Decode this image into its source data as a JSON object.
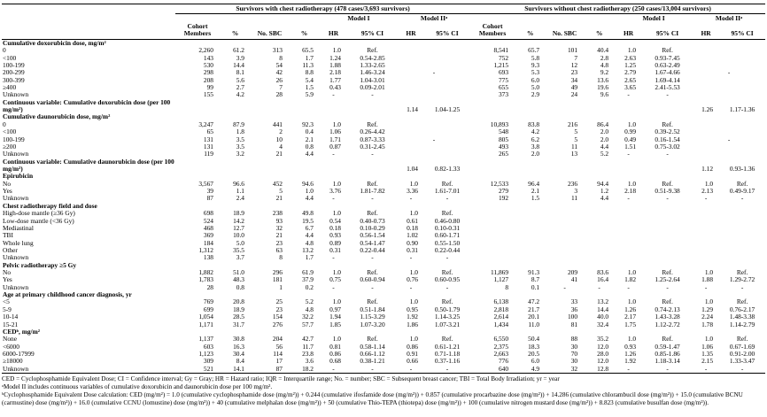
{
  "header": {
    "group_with": "Survivors with chest radiotherapy (478 cases/3,693 survivors)",
    "group_without": "Survivors without chest radiotherapy (250 cases/13,004 survivors)",
    "model1": "Model I",
    "model2": "Model IIᵃ",
    "cols": [
      "Cohort Members",
      "%",
      "No. SBC",
      "%",
      "HR",
      "95% CI",
      "HR",
      "95% CI"
    ]
  },
  "sections": [
    {
      "label": "Cumulative doxorubicin dose, mg/m²",
      "m2span": {
        "with": "-",
        "without": "-"
      },
      "rows": [
        {
          "label": "0",
          "cells": [
            "2,260",
            "61.2",
            "313",
            "65.5",
            "1.0",
            "Ref.",
            "8,541",
            "65.7",
            "101",
            "40.4",
            "1.0",
            "Ref."
          ]
        },
        {
          "label": "<100",
          "cells": [
            "143",
            "3.9",
            "8",
            "1.7",
            "1.24",
            "0.54-2.85",
            "752",
            "5.8",
            "7",
            "2.8",
            "2.63",
            "0.93-7.45"
          ]
        },
        {
          "label": "100-199",
          "cells": [
            "530",
            "14.4",
            "54",
            "11.3",
            "1.88",
            "1.33-2.65",
            "1,215",
            "9.3",
            "12",
            "4.8",
            "1.25",
            "0.63-2.49"
          ]
        },
        {
          "label": "200-299",
          "cells": [
            "298",
            "8.1",
            "42",
            "8.8",
            "2.18",
            "1.46-3.24",
            "693",
            "5.3",
            "23",
            "9.2",
            "2.79",
            "1.67-4.66"
          ]
        },
        {
          "label": "300-399",
          "cells": [
            "208",
            "5.6",
            "26",
            "5.4",
            "1.77",
            "1.04-3.01",
            "775",
            "6.0",
            "34",
            "13.6",
            "2.65",
            "1.69-4.14"
          ]
        },
        {
          "label": "≥400",
          "cells": [
            "99",
            "2.7",
            "7",
            "1.5",
            "0.43",
            "0.09-2.01",
            "655",
            "5.0",
            "49",
            "19.6",
            "3.65",
            "2.41-5.53"
          ]
        },
        {
          "label": "Unknown",
          "cells": [
            "155",
            "4.2",
            "28",
            "5.9",
            "-",
            "-",
            "373",
            "2.9",
            "24",
            "9.6",
            "-",
            "-"
          ]
        }
      ]
    },
    {
      "label": "",
      "rows": [
        {
          "label": "Continuous variable: Cumulative doxorubicin dose (per 100 mg/m²)",
          "bold": true,
          "cells": [
            "",
            "",
            "",
            "",
            "",
            "",
            "1.14",
            "1.04-1.25",
            "",
            "",
            "",
            "",
            "",
            "",
            "1.26",
            "1.17-1.36"
          ]
        }
      ]
    },
    {
      "label": "Cumulative daunorubicin dose, mg/m²",
      "m2span": {
        "with": "-",
        "without": "-"
      },
      "rows": [
        {
          "label": "0",
          "cells": [
            "3,247",
            "87.9",
            "441",
            "92.3",
            "1.0",
            "Ref.",
            "10,893",
            "83.8",
            "216",
            "86.4",
            "1.0",
            "Ref."
          ]
        },
        {
          "label": "<100",
          "cells": [
            "65",
            "1.8",
            "2",
            "0.4",
            "1.06",
            "0.26-4.42",
            "548",
            "4.2",
            "5",
            "2.0",
            "0.99",
            "0.39-2.52"
          ]
        },
        {
          "label": "100-199",
          "cells": [
            "131",
            "3.5",
            "10",
            "2.1",
            "1.71",
            "0.87-3.33",
            "805",
            "6.2",
            "5",
            "2.0",
            "0.49",
            "0.16-1.54"
          ]
        },
        {
          "label": "≥200",
          "cells": [
            "131",
            "3.5",
            "4",
            "0.8",
            "0.87",
            "0.31-2.45",
            "493",
            "3.8",
            "11",
            "4.4",
            "1.51",
            "0.75-3.02"
          ]
        },
        {
          "label": "Unknown",
          "cells": [
            "119",
            "3.2",
            "21",
            "4.4",
            "-",
            "-",
            "265",
            "2.0",
            "13",
            "5.2",
            "-",
            "-"
          ]
        }
      ]
    },
    {
      "label": "",
      "rows": [
        {
          "label": "Continuous variable:  Cumulative daunorubicin dose (per 100 mg/m²)",
          "bold": true,
          "cells": [
            "",
            "",
            "",
            "",
            "",
            "",
            "1.04",
            "0.82-1.33",
            "",
            "",
            "",
            "",
            "",
            "",
            "1.12",
            "0.93-1.36"
          ]
        }
      ]
    },
    {
      "label": "Epirubicin",
      "rows": [
        {
          "label": "No",
          "cells": [
            "3,567",
            "96.6",
            "452",
            "94.6",
            "1.0",
            "Ref.",
            "1.0",
            "Ref.",
            "12,533",
            "96.4",
            "236",
            "94.4",
            "1.0",
            "Ref.",
            "1.0",
            "Ref."
          ]
        },
        {
          "label": "Yes",
          "cells": [
            "39",
            "1.1",
            "5",
            "1.0",
            "3.76",
            "1.81-7.82",
            "3.36",
            "1.61-7.01",
            "279",
            "2.1",
            "3",
            "1.2",
            "2.18",
            "0.51-9.38",
            "2.13",
            "0.49-9.17"
          ]
        },
        {
          "label": "Unknown",
          "cells": [
            "87",
            "2.4",
            "21",
            "4.4",
            "-",
            "-",
            "-",
            "-",
            "192",
            "1.5",
            "11",
            "4.4",
            "-",
            "-",
            "-",
            "-"
          ]
        }
      ]
    },
    {
      "label": "Chest radiotherapy field and dose",
      "rows": [
        {
          "label": "High-dose mantle (≥36 Gy)",
          "cells": [
            "698",
            "18.9",
            "238",
            "49.8",
            "1.0",
            "Ref.",
            "1.0",
            "Ref.",
            "",
            "",
            "",
            "",
            "",
            "",
            "",
            ""
          ]
        },
        {
          "label": "Low-dose mantle (<36 Gy)",
          "cells": [
            "524",
            "14.2",
            "93",
            "19.5",
            "0.54",
            "0.40-0.73",
            "0.61",
            "0.46-0.80",
            "",
            "",
            "",
            "",
            "",
            "",
            "",
            ""
          ]
        },
        {
          "label": "Mediastinal",
          "cells": [
            "468",
            "12.7",
            "32",
            "6.7",
            "0.18",
            "0.10-0.29",
            "0.18",
            "0.10-0.31",
            "",
            "",
            "",
            "",
            "",
            "",
            "",
            ""
          ]
        },
        {
          "label": "TBI",
          "cells": [
            "369",
            "10.0",
            "21",
            "4.4",
            "0.93",
            "0.56-1.54",
            "1.02",
            "0.60-1.71",
            "",
            "",
            "",
            "",
            "",
            "",
            "",
            ""
          ]
        },
        {
          "label": "Whole lung",
          "cells": [
            "184",
            "5.0",
            "23",
            "4.8",
            "0.89",
            "0.54-1.47",
            "0.90",
            "0.55-1.50",
            "",
            "",
            "",
            "",
            "",
            "",
            "",
            ""
          ]
        },
        {
          "label": "Other",
          "cells": [
            "1,312",
            "35.5",
            "63",
            "13.2",
            "0.31",
            "0.22-0.44",
            "0.31",
            "0.22-0.44",
            "",
            "",
            "",
            "",
            "",
            "",
            "",
            ""
          ]
        },
        {
          "label": "Unknown",
          "cells": [
            "138",
            "3.7",
            "8",
            "1.7",
            "-",
            "-",
            "-",
            "-",
            "",
            "",
            "",
            "",
            "",
            "",
            "",
            ""
          ]
        }
      ]
    },
    {
      "label": "Pelvic radiotherapy ≥5 Gy",
      "rows": [
        {
          "label": "No",
          "cells": [
            "1,882",
            "51.0",
            "296",
            "61.9",
            "1.0",
            "Ref.",
            "1.0",
            "Ref.",
            "11,869",
            "91.3",
            "209",
            "83.6",
            "1.0",
            "Ref.",
            "1.0",
            "Ref."
          ]
        },
        {
          "label": "Yes",
          "cells": [
            "1,783",
            "48.3",
            "181",
            "37.9",
            "0.75",
            "0.60-0.94",
            "0.76",
            "0.60-0.95",
            "1,127",
            "8.7",
            "41",
            "16.4",
            "1.82",
            "1.25-2.64",
            "1.88",
            "1.29-2.72"
          ]
        },
        {
          "label": "Unknown",
          "cells": [
            "28",
            "0.8",
            "1",
            "0.2",
            "-",
            "-",
            "-",
            "-",
            "8",
            "0.1",
            "-",
            "-",
            "-",
            "-",
            "-",
            "-"
          ]
        }
      ]
    },
    {
      "label": "Age at primary childhood cancer diagnosis, yr",
      "rows": [
        {
          "label": "<5",
          "cells": [
            "769",
            "20.8",
            "25",
            "5.2",
            "1.0",
            "Ref.",
            "1.0",
            "Ref.",
            "6,138",
            "47.2",
            "33",
            "13.2",
            "1.0",
            "Ref.",
            "1.0",
            "Ref."
          ]
        },
        {
          "label": "5-9",
          "cells": [
            "699",
            "18.9",
            "23",
            "4.8",
            "0.97",
            "0.51-1.84",
            "0.95",
            "0.50-1.79",
            "2,818",
            "21.7",
            "36",
            "14.4",
            "1.26",
            "0.74-2.13",
            "1.29",
            "0.76-2.17"
          ]
        },
        {
          "label": "10-14",
          "cells": [
            "1,054",
            "28.5",
            "154",
            "32.2",
            "1.94",
            "1.15-3.29",
            "1.92",
            "1.14-3.25",
            "2,614",
            "20.1",
            "100",
            "40.0",
            "2.17",
            "1.43-3.28",
            "2.24",
            "1.48-3.38"
          ]
        },
        {
          "label": "15-21",
          "cells": [
            "1,171",
            "31.7",
            "276",
            "57.7",
            "1.85",
            "1.07-3.20",
            "1.86",
            "1.07-3.21",
            "1,434",
            "11.0",
            "81",
            "32.4",
            "1.75",
            "1.12-2.72",
            "1.78",
            "1.14-2.79"
          ]
        }
      ]
    },
    {
      "label": "CEDᵇ, mg/m²",
      "rows": [
        {
          "label": "None",
          "cells": [
            "1,137",
            "30.8",
            "204",
            "42.7",
            "1.0",
            "Ref.",
            "1.0",
            "Ref.",
            "6,550",
            "50.4",
            "88",
            "35.2",
            "1.0",
            "Ref.",
            "1.0",
            "Ref."
          ]
        },
        {
          "label": "<6000",
          "cells": [
            "603",
            "16.3",
            "56",
            "11.7",
            "0.81",
            "0.58-1.14",
            "0.86",
            "0.61-1.21",
            "2,375",
            "18.3",
            "30",
            "12.0",
            "0.93",
            "0.59-1.47",
            "1.06",
            "0.67-1.69"
          ]
        },
        {
          "label": "6000-17999",
          "cells": [
            "1,123",
            "30.4",
            "114",
            "23.8",
            "0.86",
            "0.66-1.12",
            "0.91",
            "0.71-1.18",
            "2,663",
            "20.5",
            "70",
            "28.0",
            "1.26",
            "0.85-1.86",
            "1.35",
            "0.91-2.00"
          ]
        },
        {
          "label": "≥18000",
          "cells": [
            "309",
            "8.4",
            "17",
            "3.6",
            "0.68",
            "0.38-1.21",
            "0.66",
            "0.37-1.16",
            "776",
            "6.0",
            "30",
            "12.0",
            "1.92",
            "1.18-3.14",
            "2.15",
            "1.33-3.47"
          ]
        },
        {
          "label": "Unknown",
          "cells": [
            "521",
            "14.1",
            "87",
            "18.2",
            "-",
            "-",
            "-",
            "-",
            "640",
            "4.9",
            "32",
            "12.8",
            "-",
            "-",
            "-",
            "-"
          ]
        }
      ]
    }
  ],
  "footnotes": {
    "abbrev": "CED = Cyclophosphamide Equivalent Dose; CI = Confidence interval; Gy = Gray; HR = Hazard ratio; IQR = Interquartile range; No. = number; SBC = Subsequent breast cancer; TBI = Total Body Irradiation; yr = year",
    "note_a": "ᵃModel II includes continuous variables of cumulative doxorubicin and daunorubicin dose per 100 mg/m².",
    "note_b": "ᵇCyclophosphamide Equivalent Dose calculation: CED (mg/m²) = 1.0 (cumulative cyclophosphamide dose (mg/m²)) + 0.244 (cumulative ifosfamide dose (mg/m²)) + 0.857 (cumulative procarbazine dose (mg/m²)) + 14.286 (cumulative chlorambucil dose (mg/m²)) + 15.0 (cumulative BCNU (carmustine) dose (mg/m²)) + 16.0 (cumulative CCNU (lomustine) dose (mg/m²)) + 40 (cumulative melphalan dose (mg/m²)) + 50 (cumulative Thio-TEPA (thiotepa) dose (mg/m²)) + 100 (cumulative nitrogen mustard dose (mg/m²)) + 8.823 (cumulative busulfan dose (mg/m²))."
  }
}
